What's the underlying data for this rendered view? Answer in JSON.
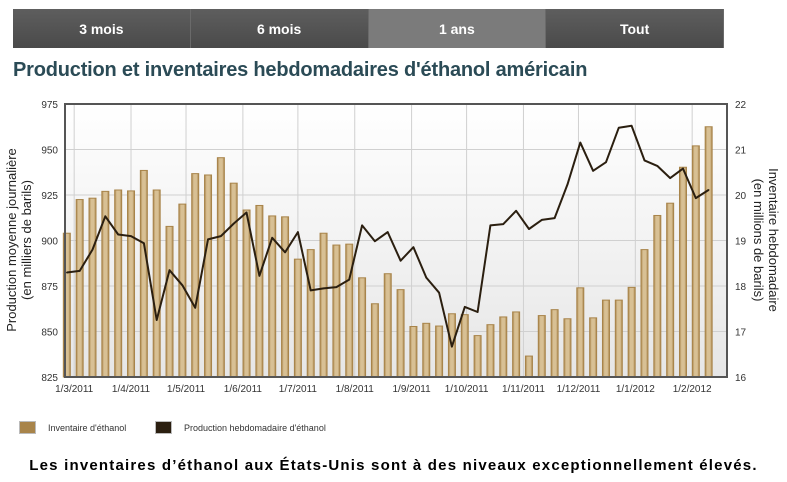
{
  "tabs": [
    {
      "label": "3 mois",
      "active": false
    },
    {
      "label": "6 mois",
      "active": false
    },
    {
      "label": "1 ans",
      "active": true
    },
    {
      "label": "Tout",
      "active": false
    }
  ],
  "caption": "Les inventaires d’éthanol aux États-Unis sont à des niveaux exceptionnellement élevés.",
  "chart_data": {
    "type": "bar+line",
    "title": "Production et inventaires hebdomadaires d'éthanol américain",
    "ylabel_left": "Production moyenne journalière",
    "ylabel_left_unit": "(en milliers de barils)",
    "ylabel_right": "Inventaire hebdomadaire",
    "ylabel_right_unit": "(en millions de barils)",
    "ylim_left": [
      825,
      975
    ],
    "yticks_left": [
      "825",
      "850",
      "875",
      "900",
      "925",
      "950",
      "975"
    ],
    "ylim_right": [
      16,
      22
    ],
    "yticks_right": [
      "16",
      "17",
      "18",
      "19",
      "20",
      "21",
      "22"
    ],
    "xlim": [
      "2011-02-24",
      "2012-02-20"
    ],
    "xticks": [
      {
        "date": "2011-03-01",
        "label": "1/3/2011"
      },
      {
        "date": "2011-04-01",
        "label": "1/4/2011"
      },
      {
        "date": "2011-05-01",
        "label": "1/5/2011"
      },
      {
        "date": "2011-06-01",
        "label": "1/6/2011"
      },
      {
        "date": "2011-07-01",
        "label": "1/7/2011"
      },
      {
        "date": "2011-08-01",
        "label": "1/8/2011"
      },
      {
        "date": "2011-09-01",
        "label": "1/9/2011"
      },
      {
        "date": "2011-10-01",
        "label": "1/10/2011"
      },
      {
        "date": "2011-11-01",
        "label": "1/11/2011"
      },
      {
        "date": "2011-12-01",
        "label": "1/12/2011"
      },
      {
        "date": "2012-01-01",
        "label": "1/1/2012"
      },
      {
        "date": "2012-02-01",
        "label": "1/2/2012"
      }
    ],
    "grid": true,
    "legend_position": "bottom-left",
    "x_start": "2011-02-25",
    "x_step_days": 7,
    "series": [
      {
        "name": "Inventaire d'éthanol",
        "type": "bar",
        "axis": "right",
        "color": "#a8844a",
        "values": [
          19.16,
          19.9,
          19.93,
          20.08,
          20.11,
          20.09,
          20.54,
          20.11,
          19.31,
          19.8,
          20.47,
          20.44,
          20.82,
          20.26,
          19.67,
          19.77,
          19.54,
          19.52,
          18.59,
          18.8,
          19.16,
          18.9,
          18.92,
          18.18,
          17.61,
          18.27,
          17.92,
          17.11,
          17.18,
          17.12,
          17.39,
          17.37,
          16.91,
          17.15,
          17.32,
          17.43,
          16.46,
          17.35,
          17.48,
          17.28,
          17.96,
          17.3,
          17.69,
          17.69,
          17.97,
          18.8,
          19.55,
          19.82,
          20.61,
          21.08,
          21.5
        ]
      },
      {
        "name": "Production hebdomadaire d'éthanol",
        "type": "line",
        "axis": "left",
        "color": "#2b1f10",
        "values": [
          882.4,
          883.3,
          895,
          913.3,
          903.3,
          902.4,
          898.5,
          856.3,
          883.7,
          875.4,
          863,
          900.6,
          902.4,
          909.3,
          915.4,
          880.6,
          901.5,
          893.5,
          904.6,
          872.6,
          873.7,
          874.4,
          878.5,
          908.3,
          899.6,
          904.6,
          888.9,
          896.3,
          879.6,
          871.3,
          841.7,
          863.5,
          860.7,
          908.3,
          909,
          916.3,
          906.3,
          911.3,
          912.3,
          930.8,
          953.8,
          938.3,
          943,
          962,
          963,
          944,
          941,
          934.3,
          939.5,
          923.3,
          927.8
        ]
      }
    ]
  }
}
